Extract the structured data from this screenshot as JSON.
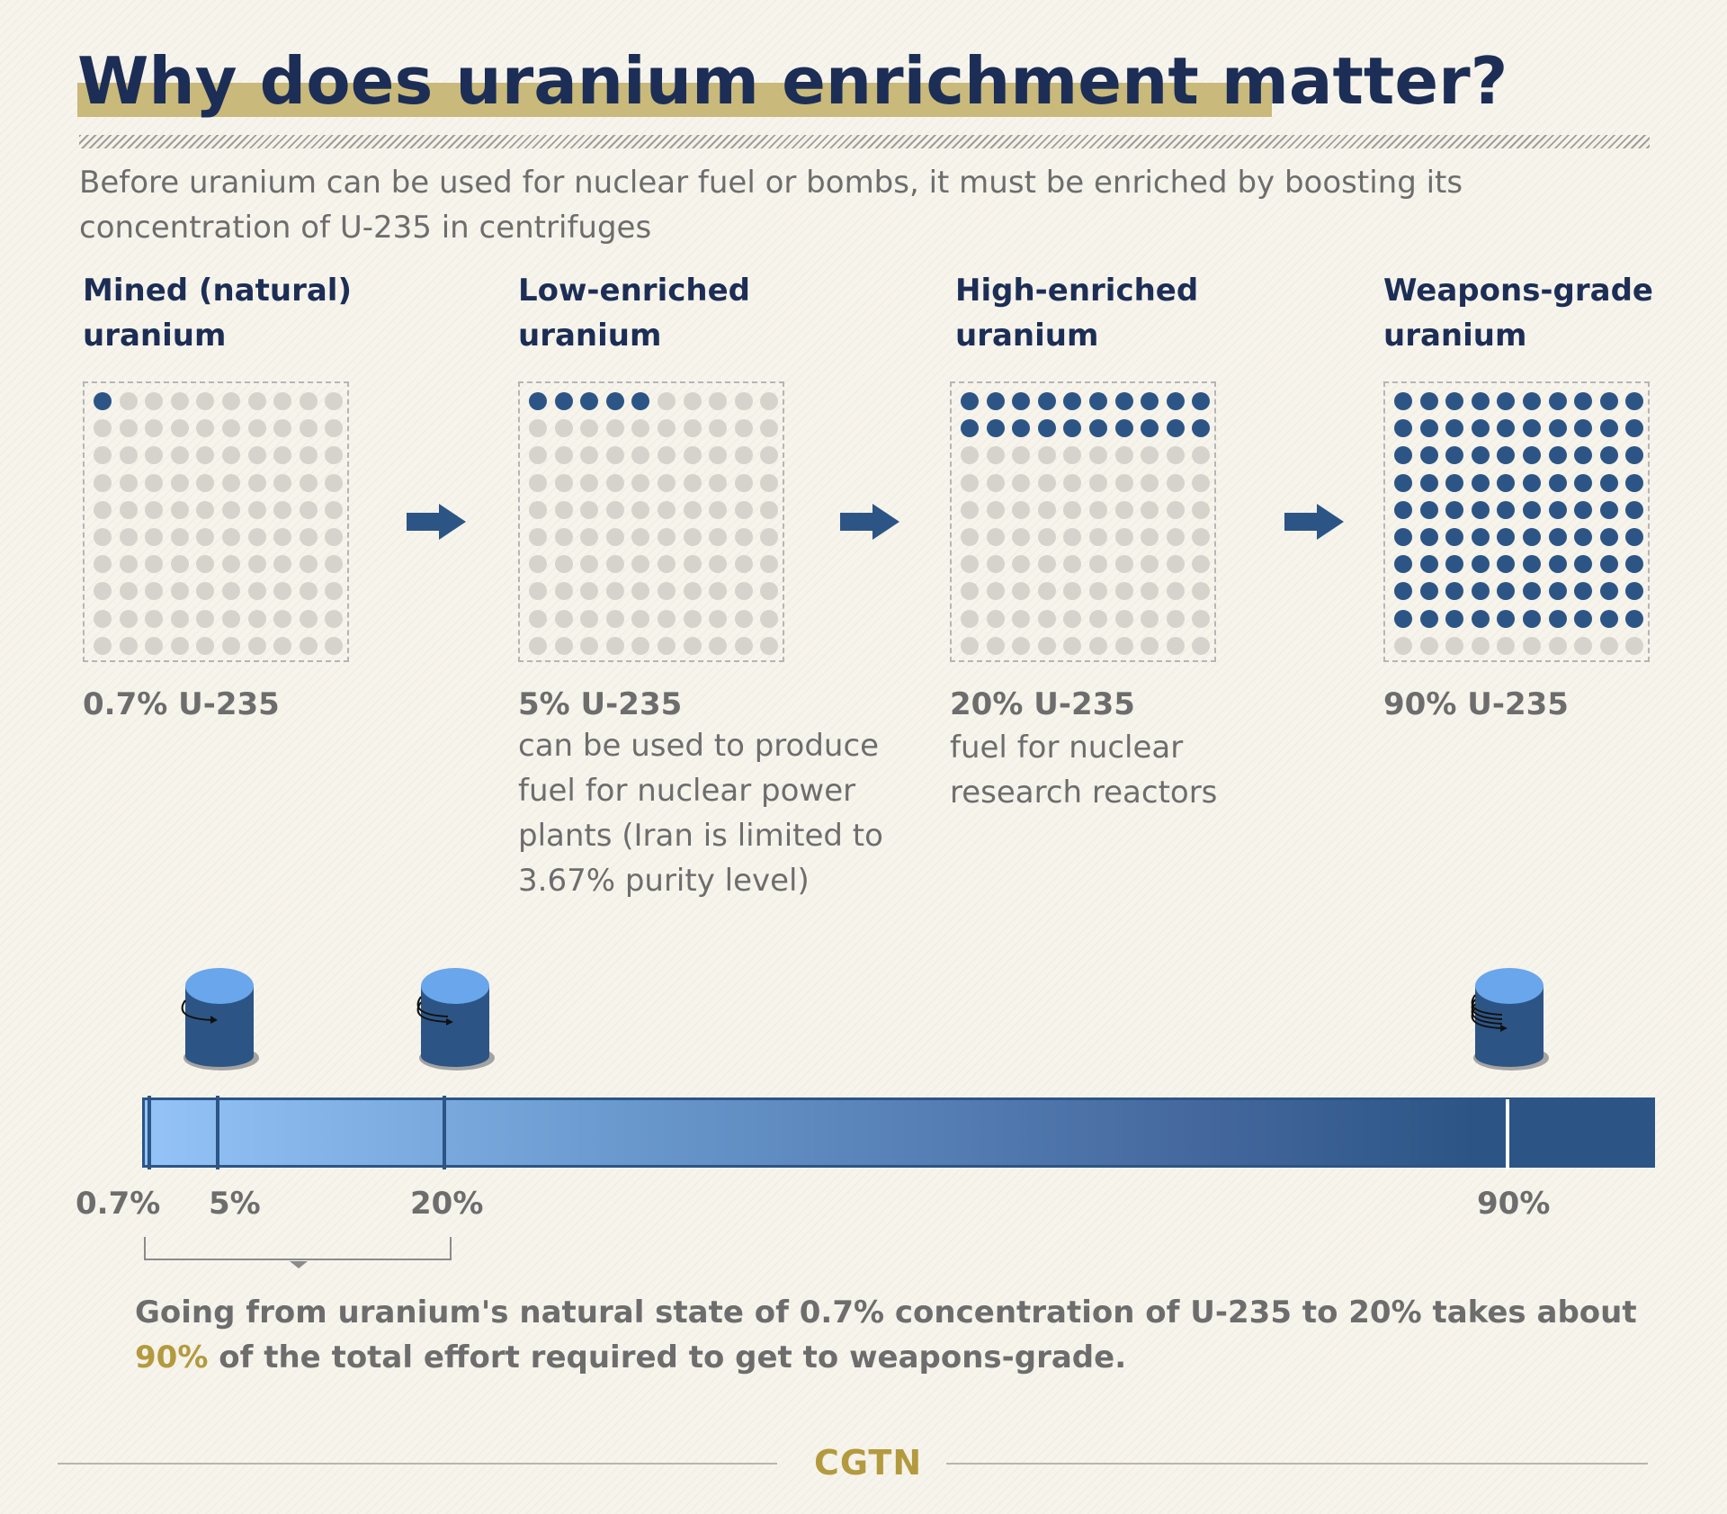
{
  "title": "Why does uranium enrichment matter?",
  "subtitle": "Before uranium can be used for nuclear fuel or bombs, it must be enriched by boosting its concentration of U-235 in centrifuges",
  "colors": {
    "navy": "#1c2e55",
    "dot_filled": "#2c5585",
    "dot_empty": "#d6d3cc",
    "highlight": "#c9b97a",
    "gold_text": "#b49a3e",
    "text_gray": "#6d6d6d"
  },
  "stages": [
    {
      "title": "Mined (natural) uranium",
      "filled_dots": 1,
      "total_dots": 100,
      "percent_label": "0.7% U-235",
      "description": ""
    },
    {
      "title": "Low-enriched uranium",
      "filled_dots": 5,
      "total_dots": 100,
      "percent_label": "5% U-235",
      "description": "can be used to produce fuel for nuclear power plants (Iran is limited to 3.67% purity level)"
    },
    {
      "title": "High-enriched uranium",
      "filled_dots": 20,
      "total_dots": 100,
      "percent_label": "20% U-235",
      "description": "fuel for nuclear research reactors"
    },
    {
      "title": "Weapons-grade uranium",
      "filled_dots": 90,
      "total_dots": 100,
      "percent_label": "90% U-235",
      "description": ""
    }
  ],
  "arrows": [
    "arrow-right-icon",
    "arrow-right-icon",
    "arrow-right-icon"
  ],
  "scale": {
    "labels": [
      "0.7%",
      "5%",
      "20%",
      "90%"
    ],
    "centrifuge_icons": [
      "centrifuge-icon",
      "centrifuge-icon",
      "centrifuge-icon"
    ]
  },
  "note": {
    "text_before": "Going from uranium's natural state of 0.7% concentration of U-235 to 20% takes about ",
    "highlight": "90%",
    "text_after": " of the total effort required to get to weapons-grade."
  },
  "footer": {
    "logo": "CGTN"
  }
}
